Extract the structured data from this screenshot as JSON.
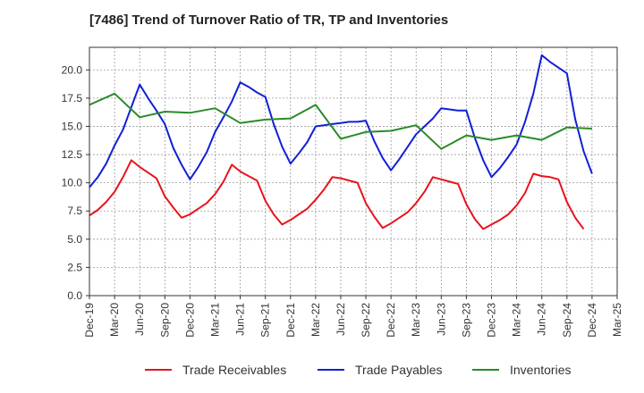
{
  "chart_data": {
    "type": "line",
    "title": "[7486]  Trend of Turnover Ratio of TR, TP and Inventories",
    "xlabel": "",
    "ylabel": "",
    "ylim": [
      0,
      22
    ],
    "yticks": [
      "0.0",
      "2.5",
      "5.0",
      "7.5",
      "10.0",
      "12.5",
      "15.0",
      "17.5",
      "20.0"
    ],
    "x_tick_labels": [
      "Dec-19",
      "Mar-20",
      "Jun-20",
      "Sep-20",
      "Dec-20",
      "Mar-21",
      "Jun-21",
      "Sep-21",
      "Dec-21",
      "Mar-22",
      "Jun-22",
      "Sep-22",
      "Dec-22",
      "Mar-23",
      "Jun-23",
      "Sep-23",
      "Dec-23",
      "Mar-24",
      "Jun-24",
      "Sep-24",
      "Dec-24",
      "Mar-25"
    ],
    "grid": true,
    "legend_position": "bottom",
    "colors": {
      "Trade Receivables": "#e8131b",
      "Trade Payables": "#1020d8",
      "Inventories": "#2a8a2a"
    },
    "series": [
      {
        "name": "Trade Receivables",
        "points": [
          [
            0,
            7.1
          ],
          [
            1,
            7.6
          ],
          [
            2,
            8.3
          ],
          [
            3,
            9.2
          ],
          [
            4,
            10.5
          ],
          [
            5,
            12.0
          ],
          [
            6,
            11.4
          ],
          [
            7,
            10.9
          ],
          [
            8,
            10.4
          ],
          [
            9,
            8.8
          ],
          [
            10,
            7.8
          ],
          [
            11,
            6.9
          ],
          [
            12,
            7.2
          ],
          [
            13,
            7.7
          ],
          [
            14,
            8.2
          ],
          [
            15,
            9.0
          ],
          [
            16,
            10.1
          ],
          [
            17,
            11.6
          ],
          [
            18,
            11.0
          ],
          [
            19,
            10.6
          ],
          [
            20,
            10.2
          ],
          [
            21,
            8.4
          ],
          [
            22,
            7.2
          ],
          [
            23,
            6.3
          ],
          [
            24,
            6.7
          ],
          [
            25,
            7.2
          ],
          [
            26,
            7.7
          ],
          [
            27,
            8.5
          ],
          [
            28,
            9.4
          ],
          [
            29,
            10.5
          ],
          [
            30,
            10.4
          ],
          [
            31,
            10.2
          ],
          [
            32,
            10.0
          ],
          [
            33,
            8.2
          ],
          [
            34,
            7.0
          ],
          [
            35,
            6.0
          ],
          [
            36,
            6.4
          ],
          [
            37,
            6.9
          ],
          [
            38,
            7.4
          ],
          [
            39,
            8.2
          ],
          [
            40,
            9.2
          ],
          [
            41,
            10.5
          ],
          [
            42,
            10.3
          ],
          [
            43,
            10.1
          ],
          [
            44,
            9.9
          ],
          [
            45,
            8.1
          ],
          [
            46,
            6.8
          ],
          [
            47,
            5.9
          ],
          [
            48,
            6.3
          ],
          [
            49,
            6.7
          ],
          [
            50,
            7.2
          ],
          [
            51,
            8.0
          ],
          [
            52,
            9.1
          ],
          [
            53,
            10.8
          ],
          [
            54,
            10.6
          ],
          [
            55,
            10.5
          ],
          [
            56,
            10.3
          ],
          [
            57,
            8.3
          ],
          [
            58,
            6.9
          ],
          [
            59,
            5.9
          ]
        ]
      },
      {
        "name": "Trade Payables",
        "points": [
          [
            0,
            9.6
          ],
          [
            1,
            10.5
          ],
          [
            2,
            11.7
          ],
          [
            3,
            13.3
          ],
          [
            4,
            14.7
          ],
          [
            5,
            16.7
          ],
          [
            6,
            18.7
          ],
          [
            7,
            17.5
          ],
          [
            8,
            16.4
          ],
          [
            9,
            15.2
          ],
          [
            10,
            13.1
          ],
          [
            11,
            11.6
          ],
          [
            12,
            10.3
          ],
          [
            13,
            11.4
          ],
          [
            14,
            12.7
          ],
          [
            15,
            14.5
          ],
          [
            16,
            15.8
          ],
          [
            17,
            17.2
          ],
          [
            18,
            18.9
          ],
          [
            19,
            18.5
          ],
          [
            20,
            18.0
          ],
          [
            21,
            17.6
          ],
          [
            22,
            15.2
          ],
          [
            23,
            13.2
          ],
          [
            24,
            11.7
          ],
          [
            25,
            12.6
          ],
          [
            26,
            13.6
          ],
          [
            27,
            15.0
          ],
          [
            28,
            15.1
          ],
          [
            29,
            15.2
          ],
          [
            30,
            15.3
          ],
          [
            31,
            15.4
          ],
          [
            32,
            15.4
          ],
          [
            33,
            15.5
          ],
          [
            34,
            13.7
          ],
          [
            35,
            12.2
          ],
          [
            36,
            11.1
          ],
          [
            37,
            12.1
          ],
          [
            38,
            13.2
          ],
          [
            39,
            14.3
          ],
          [
            40,
            15.0
          ],
          [
            41,
            15.7
          ],
          [
            42,
            16.6
          ],
          [
            43,
            16.5
          ],
          [
            44,
            16.4
          ],
          [
            45,
            16.4
          ],
          [
            46,
            14.0
          ],
          [
            47,
            12.0
          ],
          [
            48,
            10.5
          ],
          [
            49,
            11.3
          ],
          [
            50,
            12.3
          ],
          [
            51,
            13.4
          ],
          [
            52,
            15.4
          ],
          [
            53,
            17.9
          ],
          [
            54,
            21.3
          ],
          [
            55,
            20.7
          ],
          [
            56,
            20.2
          ],
          [
            57,
            19.7
          ],
          [
            58,
            15.6
          ],
          [
            59,
            12.8
          ],
          [
            60,
            10.8
          ]
        ]
      },
      {
        "name": "Inventories",
        "points": [
          [
            0,
            16.9
          ],
          [
            3,
            17.9
          ],
          [
            6,
            15.8
          ],
          [
            9,
            16.3
          ],
          [
            12,
            16.2
          ],
          [
            15,
            16.6
          ],
          [
            18,
            15.3
          ],
          [
            21,
            15.6
          ],
          [
            24,
            15.7
          ],
          [
            27,
            16.9
          ],
          [
            30,
            13.9
          ],
          [
            33,
            14.5
          ],
          [
            36,
            14.6
          ],
          [
            39,
            15.1
          ],
          [
            42,
            13.0
          ],
          [
            45,
            14.2
          ],
          [
            48,
            13.8
          ],
          [
            51,
            14.2
          ],
          [
            54,
            13.8
          ],
          [
            57,
            14.9
          ],
          [
            60,
            14.8
          ]
        ]
      }
    ]
  }
}
